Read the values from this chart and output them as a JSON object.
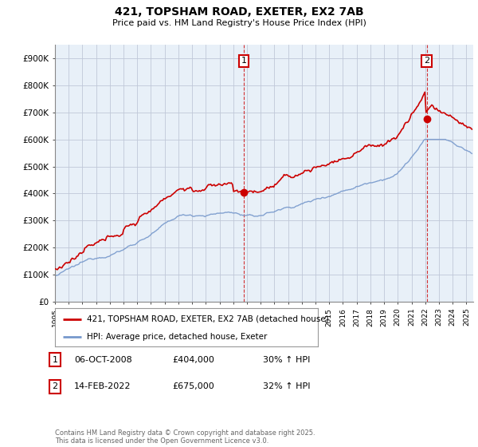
{
  "title": "421, TOPSHAM ROAD, EXETER, EX2 7AB",
  "subtitle": "Price paid vs. HM Land Registry's House Price Index (HPI)",
  "ylabel_ticks": [
    "£0",
    "£100K",
    "£200K",
    "£300K",
    "£400K",
    "£500K",
    "£600K",
    "£700K",
    "£800K",
    "£900K"
  ],
  "ytick_values": [
    0,
    100000,
    200000,
    300000,
    400000,
    500000,
    600000,
    700000,
    800000,
    900000
  ],
  "ylim": [
    0,
    950000
  ],
  "xlim_start": 1995.0,
  "xlim_end": 2025.5,
  "red_color": "#cc0000",
  "blue_color": "#7799cc",
  "chart_bg": "#e8f0f8",
  "marker1_x": 2008.77,
  "marker1_y": 404000,
  "marker2_x": 2022.12,
  "marker2_y": 675000,
  "legend1": "421, TOPSHAM ROAD, EXETER, EX2 7AB (detached house)",
  "legend2": "HPI: Average price, detached house, Exeter",
  "table_data": [
    {
      "num": "1",
      "date": "06-OCT-2008",
      "price": "£404,000",
      "hpi": "30% ↑ HPI"
    },
    {
      "num": "2",
      "date": "14-FEB-2022",
      "price": "£675,000",
      "hpi": "32% ↑ HPI"
    }
  ],
  "footer": "Contains HM Land Registry data © Crown copyright and database right 2025.\nThis data is licensed under the Open Government Licence v3.0.",
  "background_color": "#ffffff",
  "grid_color": "#c0c8d8"
}
